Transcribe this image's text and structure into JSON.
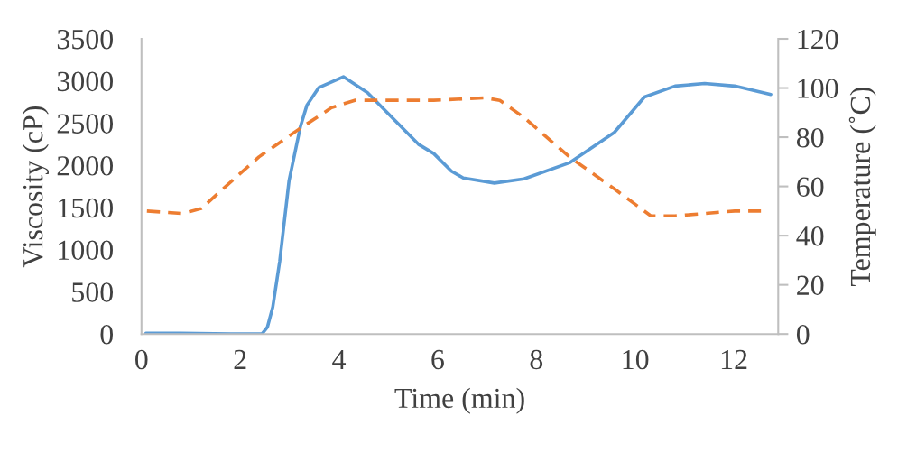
{
  "chart_data": {
    "type": "line",
    "xlabel": "Time (min)",
    "ylabel": "Viscosity (cP)",
    "y2label": "Temperature (˚C)",
    "xlim": [
      0,
      12.9
    ],
    "xticks": [
      0,
      2,
      4,
      6,
      8,
      10,
      12
    ],
    "ylim": [
      0,
      3500
    ],
    "yticks": [
      0,
      500,
      1000,
      1500,
      2000,
      2500,
      3000,
      3500
    ],
    "y2lim": [
      0,
      120
    ],
    "y2ticks": [
      0,
      20,
      40,
      60,
      80,
      100,
      120
    ],
    "grid": false,
    "marker": "none",
    "series": [
      {
        "color": "#5b9bd5",
        "line_style": "solid",
        "x": [
          0.09,
          0.79,
          1.83,
          2.07,
          2.44,
          2.55,
          2.66,
          2.8,
          2.99,
          3.22,
          3.35,
          3.59,
          4.09,
          4.58,
          5.61,
          5.92,
          6.28,
          6.52,
          7.15,
          7.75,
          8.67,
          9.58,
          10.19,
          10.81,
          11.41,
          12.02,
          12.75
        ],
        "values": [
          10,
          10,
          0,
          0,
          0,
          80,
          320,
          860,
          1820,
          2460,
          2710,
          2920,
          3050,
          2860,
          2250,
          2140,
          1930,
          1850,
          1790,
          1840,
          2030,
          2390,
          2810,
          2940,
          2970,
          2940,
          2840
        ]
      },
      {
        "color": "#ed7d31",
        "line_style": "dashed",
        "axis": "y2",
        "x": [
          0.11,
          0.84,
          1.21,
          1.65,
          2.38,
          3.17,
          3.85,
          4.32,
          5.19,
          5.92,
          6.96,
          7.26,
          7.75,
          8.67,
          9.58,
          10.32,
          10.81,
          12.02,
          12.55
        ],
        "values": [
          50,
          49,
          51,
          59,
          72,
          83,
          92,
          95,
          95,
          95,
          96,
          95,
          88,
          72,
          59,
          48,
          48,
          50,
          50
        ]
      }
    ]
  }
}
